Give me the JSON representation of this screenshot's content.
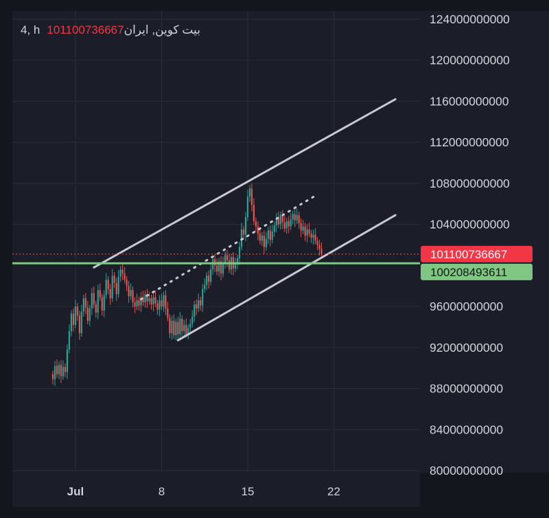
{
  "legend": {
    "interval": "4",
    "symbol_name": "بیت کوین",
    "unit": "h",
    "exchange": "ایران",
    "last_price": "101100736667"
  },
  "colors": {
    "up": "#26a69a",
    "down": "#ef5350",
    "channel": "#c8c9d2",
    "support": "#81c784",
    "last_price_line": "#f23645",
    "grid": "#2a2e39",
    "text": "#d1d4dc"
  },
  "chart_data": {
    "type": "candlestick",
    "title": "",
    "xlabel": "",
    "ylabel": "",
    "ylim": [
      79800000000,
      124800000000
    ],
    "x_range": [
      "Jun 25 21:00",
      "Jul 29 00:00"
    ],
    "y_ticks": [
      {
        "value": 124000000000,
        "label": "124000000000"
      },
      {
        "value": 120000000000,
        "label": "120000000000"
      },
      {
        "value": 116000000000,
        "label": "116000000000"
      },
      {
        "value": 112000000000,
        "label": "112000000000"
      },
      {
        "value": 108000000000,
        "label": "108000000000"
      },
      {
        "value": 104000000000,
        "label": "104000000000"
      },
      {
        "value": 96000000000,
        "label": "96000000000"
      },
      {
        "value": 92000000000,
        "label": "92000000000"
      },
      {
        "value": 88000000000,
        "label": "88000000000"
      },
      {
        "value": 84000000000,
        "label": "84000000000"
      },
      {
        "value": 80000000000,
        "label": "80000000000"
      }
    ],
    "x_ticks": [
      {
        "label": "Jul",
        "date": "Jul 1"
      },
      {
        "label": "8",
        "date": "Jul 8"
      },
      {
        "label": "15",
        "date": "Jul 15"
      },
      {
        "label": "22",
        "date": "Jul 22"
      }
    ],
    "interval_hours": 4,
    "first_bar": "Jun 29 04:00",
    "closes": [
      88.9,
      90.2,
      89.4,
      90.3,
      89.2,
      90.1,
      89.6,
      91.8,
      93.6,
      95.3,
      94.2,
      96.0,
      95.1,
      93.4,
      95.5,
      96.8,
      95.9,
      94.6,
      95.8,
      97.3,
      96.2,
      95.4,
      97.6,
      96.9,
      95.6,
      97.1,
      98.6,
      97.7,
      96.8,
      99.0,
      98.3,
      97.2,
      98.9,
      99.6,
      99.2,
      98.6,
      98.0,
      97.0,
      97.6,
      96.4,
      96.0,
      96.6,
      96.1,
      96.9,
      96.4,
      97.2,
      96.5,
      96.8,
      96.2,
      96.9,
      96.3,
      95.7,
      96.6,
      96.0,
      97.1,
      95.8,
      94.9,
      93.4,
      94.6,
      93.2,
      94.5,
      93.3,
      94.8,
      93.6,
      94.2,
      93.3,
      93.9,
      94.3,
      95.0,
      96.2,
      95.8,
      96.6,
      96.1,
      97.7,
      98.1,
      99.0,
      98.4,
      99.6,
      100.6,
      100.0,
      99.4,
      100.4,
      99.2,
      100.2,
      101.0,
      100.5,
      99.6,
      100.8,
      99.7,
      100.1,
      100.7,
      101.8,
      103.5,
      103.0,
      104.7,
      106.7,
      107.5,
      105.9,
      104.3,
      103.8,
      103.1,
      102.4,
      102.9,
      101.8,
      102.6,
      103.4,
      102.5,
      103.3,
      103.9,
      104.6,
      104.0,
      104.9,
      104.2,
      103.6,
      104.3,
      103.8,
      104.5,
      105.0,
      104.4,
      104.9,
      104.1,
      103.4,
      103.8,
      102.9,
      103.5,
      103.1,
      102.7,
      103.0,
      102.4,
      102.0,
      101.6,
      101.1
    ],
    "drawings": [
      {
        "type": "trend_line",
        "name": "channel-upper",
        "from": {
          "x": "Jul 2 12:00",
          "y": 99800000000
        },
        "to": {
          "x": "Jul 27 00:00",
          "y": 116200000000
        }
      },
      {
        "type": "trend_line",
        "name": "channel-lower",
        "from": {
          "x": "Jul 9 08:00",
          "y": 92700000000
        },
        "to": {
          "x": "Jul 27 00:00",
          "y": 104900000000
        }
      },
      {
        "type": "trend_line",
        "name": "channel-median",
        "style": "dotted",
        "from": {
          "x": "Jul 6 08:00",
          "y": 96700000000
        },
        "to": {
          "x": "Jul 20 12:00",
          "y": 106800000000
        }
      },
      {
        "type": "horizontal_line",
        "name": "support-line",
        "y": 100208493611
      },
      {
        "type": "horizontal_line",
        "name": "last-price-line",
        "style": "dotted",
        "y": 101100736667
      }
    ],
    "price_tags": [
      {
        "value": 101100736667,
        "label": "101100736667",
        "color": "#f23645"
      },
      {
        "value": 100208493611,
        "label": "100208493611",
        "color": "#81c784"
      }
    ]
  }
}
